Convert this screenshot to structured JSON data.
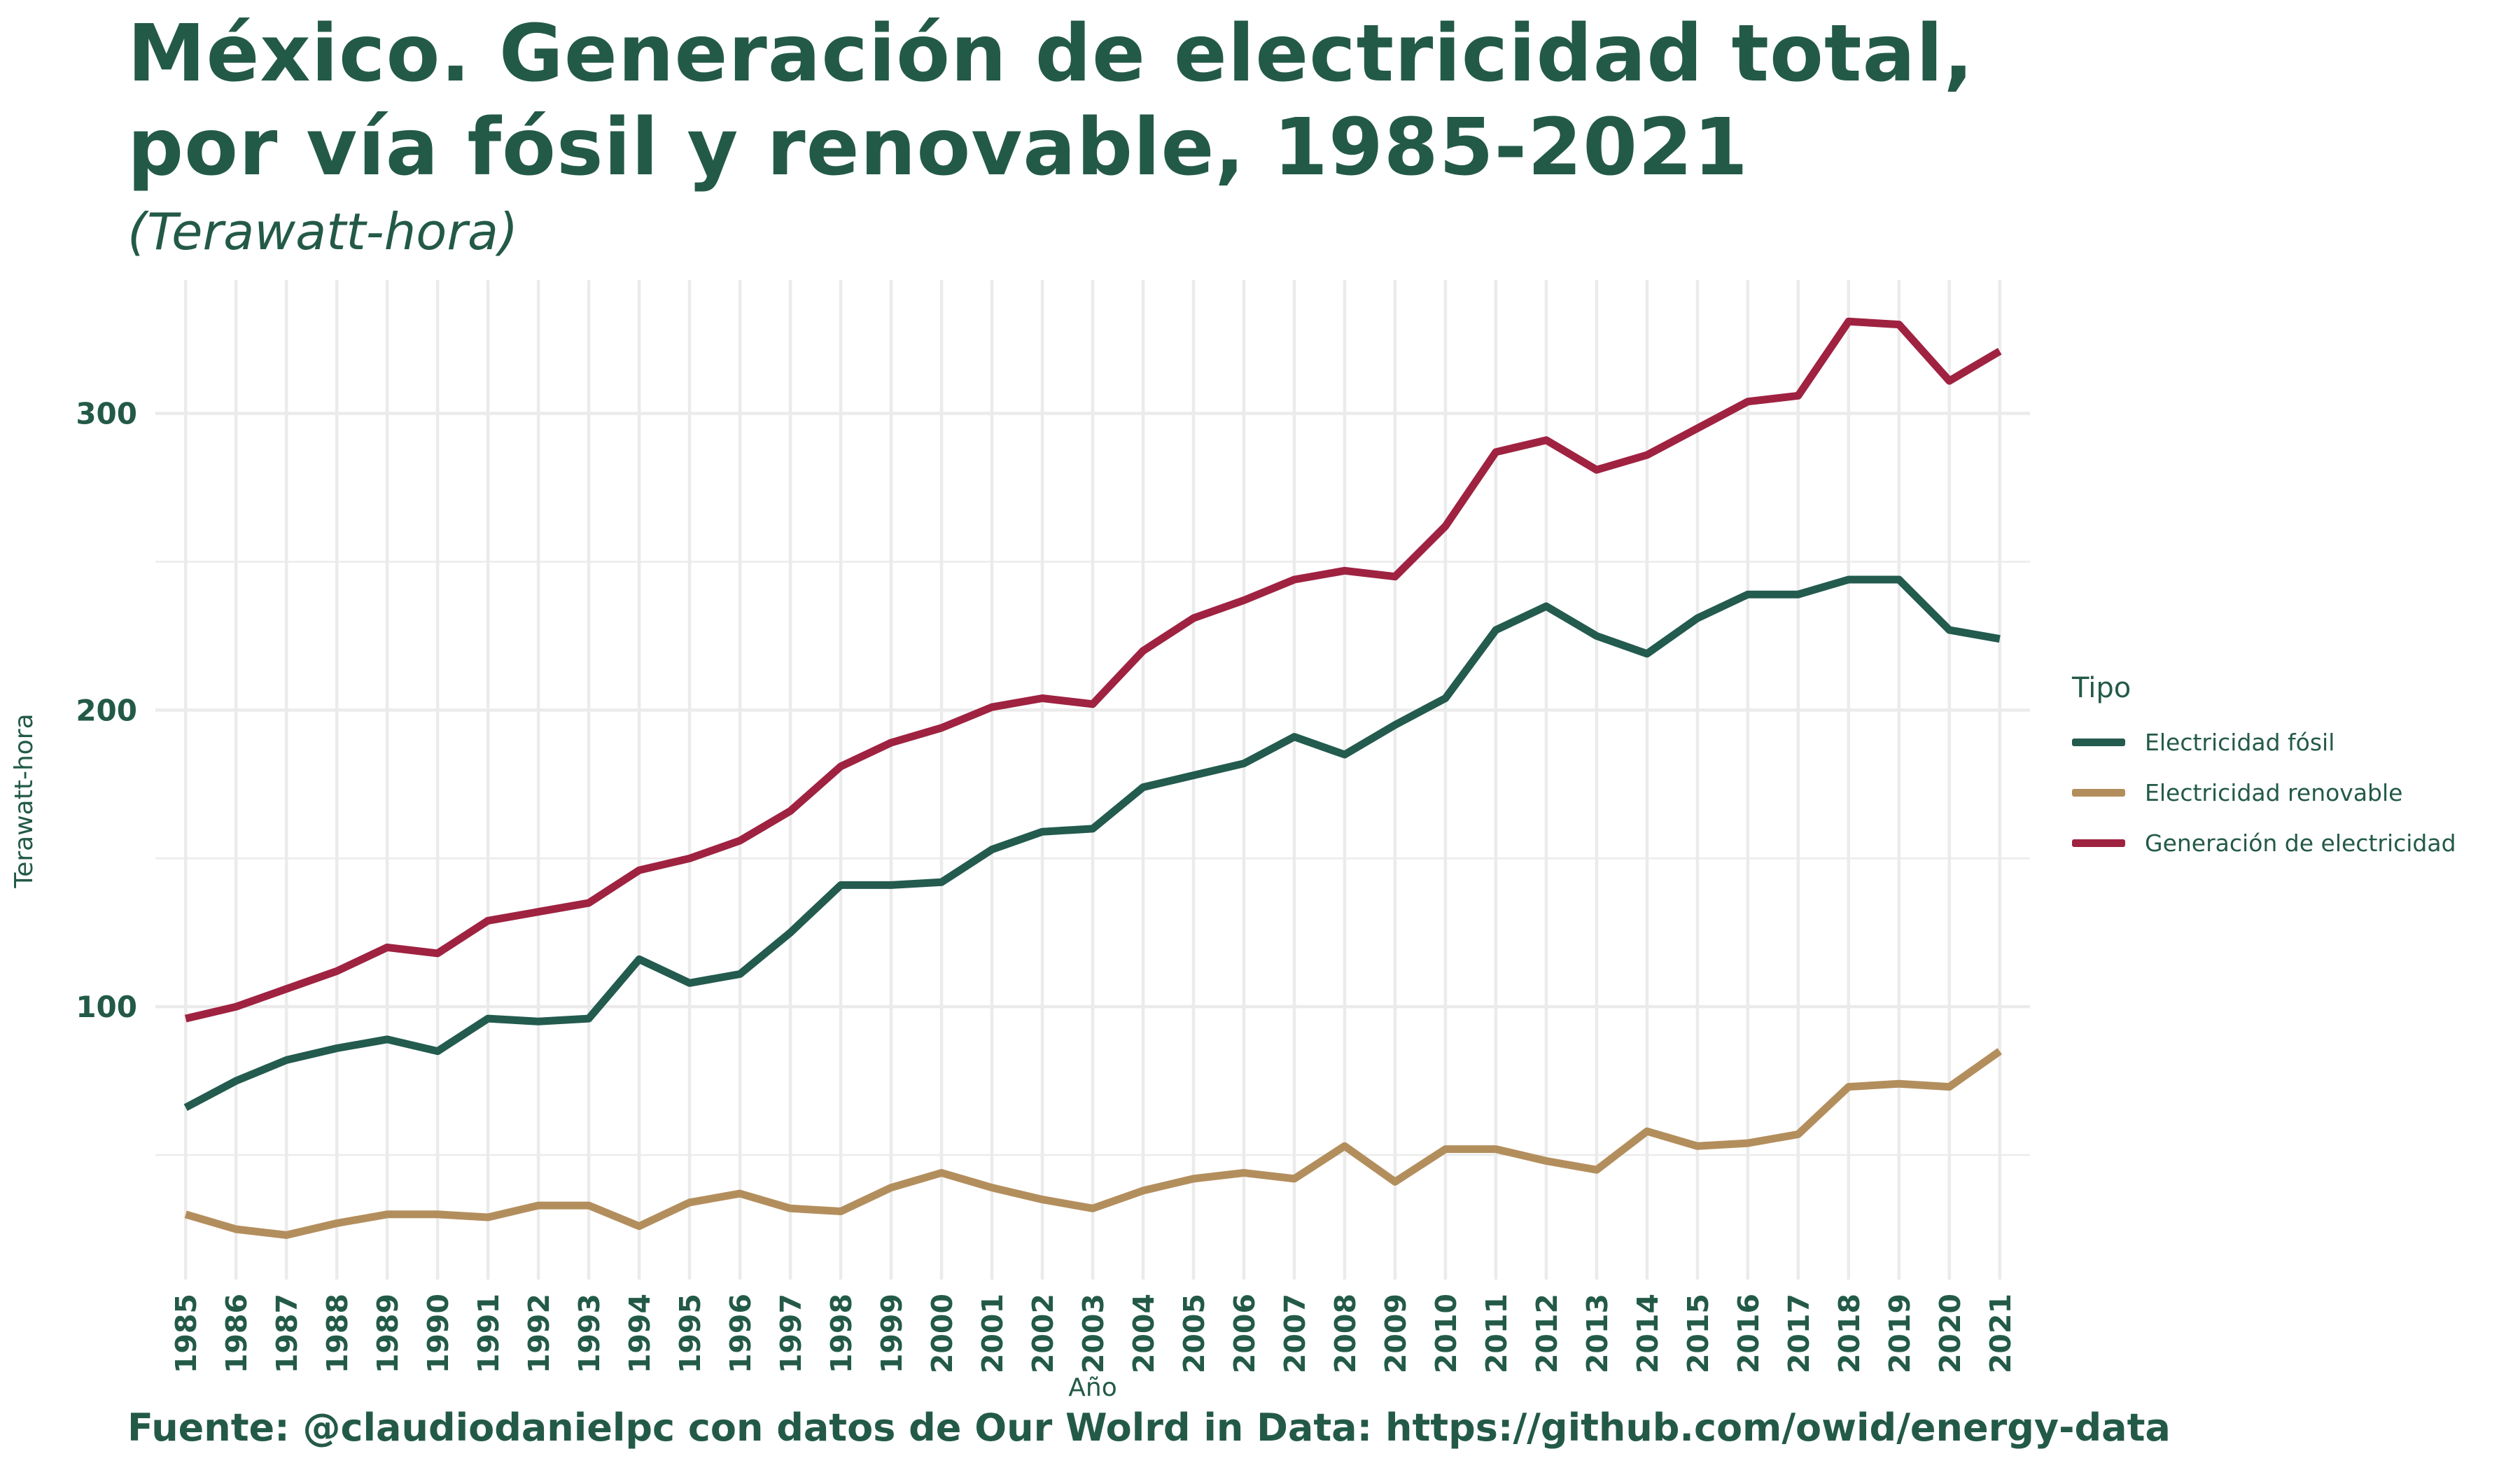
{
  "title_line1": "México. Generación de electricidad total,",
  "title_line2": "por vía fósil y renovable, 1985-2021",
  "subtitle": "(Terawatt-hora)",
  "caption": "Fuente: @claudiodanielpc con datos de Our Wolrd in Data: https://github.com/owid/energy-data",
  "colors": {
    "text": "#235a47",
    "grid": "#ebebeb",
    "fosil": "#235b4e",
    "renovable": "#b38e5d",
    "total": "#9f2241"
  },
  "chart_data": {
    "type": "line",
    "xlabel": "Año",
    "ylabel": "Terawatt-hora",
    "ylim": [
      8,
      345
    ],
    "yticks": [
      100,
      200,
      300
    ],
    "grid": true,
    "legend_title": "Tipo",
    "legend_position": "right",
    "x": [
      1985,
      1986,
      1987,
      1988,
      1989,
      1990,
      1991,
      1992,
      1993,
      1994,
      1995,
      1996,
      1997,
      1998,
      1999,
      2000,
      2001,
      2002,
      2003,
      2004,
      2005,
      2006,
      2007,
      2008,
      2009,
      2010,
      2011,
      2012,
      2013,
      2014,
      2015,
      2016,
      2017,
      2018,
      2019,
      2020,
      2021
    ],
    "series": [
      {
        "name": "Electricidad fósil",
        "color": "#235b4e",
        "values": [
          66,
          75,
          82,
          86,
          89,
          85,
          96,
          95,
          96,
          116,
          108,
          111,
          125,
          141,
          141,
          142,
          153,
          159,
          160,
          174,
          178,
          182,
          191,
          185,
          195,
          204,
          227,
          235,
          225,
          219,
          231,
          239,
          239,
          244,
          244,
          227,
          224
        ]
      },
      {
        "name": "Electricidad renovable",
        "color": "#b38e5d",
        "values": [
          30,
          25,
          23,
          27,
          30,
          30,
          29,
          33,
          33,
          26,
          34,
          37,
          32,
          31,
          39,
          44,
          39,
          35,
          32,
          38,
          42,
          44,
          42,
          53,
          41,
          52,
          52,
          48,
          45,
          58,
          53,
          54,
          57,
          73,
          74,
          73,
          85
        ]
      },
      {
        "name": "Generación de electricidad",
        "color": "#9f2241",
        "values": [
          96,
          100,
          106,
          112,
          120,
          118,
          129,
          132,
          135,
          146,
          150,
          156,
          166,
          181,
          189,
          194,
          201,
          204,
          202,
          220,
          231,
          237,
          244,
          247,
          245,
          262,
          287,
          291,
          281,
          286,
          295,
          304,
          306,
          331,
          330,
          311,
          321
        ]
      }
    ]
  }
}
